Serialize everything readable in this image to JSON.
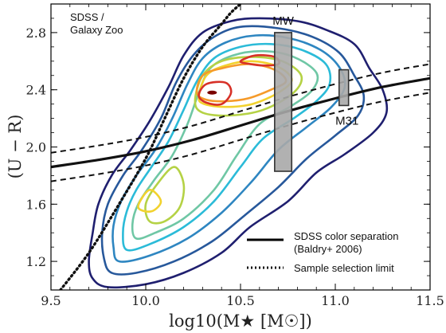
{
  "chart_data": {
    "type": "contour",
    "xlabel": "log10(M★ [M☉])",
    "ylabel": "(U − R)",
    "xlim": [
      9.5,
      11.5
    ],
    "ylim": [
      1.0,
      3.0
    ],
    "xticks": [
      "9.5",
      "10.0",
      "10.5",
      "11.0",
      "11.5"
    ],
    "yticks": [
      "1.2",
      "1.6",
      "2.0",
      "2.4",
      "2.8"
    ],
    "corner_note": [
      "SDSS /",
      "Galaxy Zoo"
    ],
    "legend": {
      "placement": "bottom-right",
      "entries": [
        {
          "style": "solid",
          "label_lines": [
            "SDSS color separation",
            "(Baldry+ 2006)"
          ]
        },
        {
          "style": "dotted",
          "label_lines": [
            "Sample selection limit"
          ]
        }
      ]
    },
    "color_separation": {
      "x": [
        9.5,
        9.75,
        10.0,
        10.25,
        10.5,
        10.75,
        11.0,
        11.25,
        11.5
      ],
      "center": [
        1.86,
        1.91,
        1.97,
        2.05,
        2.15,
        2.25,
        2.34,
        2.42,
        2.48
      ],
      "offset": 0.1
    },
    "selection_limit": {
      "x": [
        9.55,
        9.7,
        9.85,
        10.0,
        10.1,
        10.2,
        10.3,
        10.4,
        10.45,
        10.5
      ],
      "y": [
        1.0,
        1.26,
        1.58,
        1.92,
        2.2,
        2.48,
        2.7,
        2.86,
        2.94,
        3.0
      ]
    },
    "contours": [
      {
        "color": "#1f1f6f",
        "points": [
          [
            9.8,
            1.02
          ],
          [
            9.72,
            1.08
          ],
          [
            9.7,
            1.2
          ],
          [
            9.72,
            1.4
          ],
          [
            9.75,
            1.6
          ],
          [
            9.82,
            1.8
          ],
          [
            9.92,
            1.98
          ],
          [
            10.02,
            2.18
          ],
          [
            10.12,
            2.42
          ],
          [
            10.2,
            2.64
          ],
          [
            10.3,
            2.8
          ],
          [
            10.45,
            2.88
          ],
          [
            10.6,
            2.9
          ],
          [
            10.8,
            2.88
          ],
          [
            10.95,
            2.82
          ],
          [
            11.1,
            2.72
          ],
          [
            11.18,
            2.55
          ],
          [
            11.25,
            2.4
          ],
          [
            11.27,
            2.24
          ],
          [
            11.2,
            2.1
          ],
          [
            11.05,
            1.95
          ],
          [
            10.9,
            1.82
          ],
          [
            10.75,
            1.62
          ],
          [
            10.55,
            1.44
          ],
          [
            10.4,
            1.26
          ],
          [
            10.2,
            1.12
          ],
          [
            10.0,
            1.04
          ]
        ]
      },
      {
        "color": "#27589b",
        "points": [
          [
            9.82,
            1.12
          ],
          [
            9.78,
            1.22
          ],
          [
            9.77,
            1.4
          ],
          [
            9.8,
            1.6
          ],
          [
            9.88,
            1.8
          ],
          [
            9.98,
            1.98
          ],
          [
            10.08,
            2.2
          ],
          [
            10.16,
            2.45
          ],
          [
            10.25,
            2.64
          ],
          [
            10.36,
            2.77
          ],
          [
            10.5,
            2.84
          ],
          [
            10.7,
            2.83
          ],
          [
            10.88,
            2.77
          ],
          [
            11.02,
            2.66
          ],
          [
            11.1,
            2.5
          ],
          [
            11.15,
            2.36
          ],
          [
            11.12,
            2.22
          ],
          [
            11.0,
            2.08
          ],
          [
            10.85,
            1.92
          ],
          [
            10.7,
            1.72
          ],
          [
            10.52,
            1.52
          ],
          [
            10.35,
            1.34
          ],
          [
            10.15,
            1.2
          ],
          [
            9.95,
            1.12
          ]
        ]
      },
      {
        "color": "#2e86c1",
        "points": [
          [
            9.86,
            1.2
          ],
          [
            9.83,
            1.3
          ],
          [
            9.83,
            1.45
          ],
          [
            9.87,
            1.62
          ],
          [
            9.95,
            1.8
          ],
          [
            10.05,
            1.98
          ],
          [
            10.14,
            2.2
          ],
          [
            10.22,
            2.44
          ],
          [
            10.3,
            2.62
          ],
          [
            10.42,
            2.73
          ],
          [
            10.58,
            2.78
          ],
          [
            10.76,
            2.76
          ],
          [
            10.92,
            2.68
          ],
          [
            11.02,
            2.56
          ],
          [
            11.05,
            2.42
          ],
          [
            10.98,
            2.28
          ],
          [
            10.85,
            2.14
          ],
          [
            10.7,
            1.98
          ],
          [
            10.56,
            1.76
          ],
          [
            10.4,
            1.54
          ],
          [
            10.22,
            1.36
          ],
          [
            10.02,
            1.24
          ]
        ]
      },
      {
        "color": "#2bbbd8",
        "points": [
          [
            9.9,
            1.28
          ],
          [
            9.88,
            1.4
          ],
          [
            9.9,
            1.55
          ],
          [
            9.95,
            1.7
          ],
          [
            10.03,
            1.86
          ],
          [
            10.12,
            2.04
          ],
          [
            10.2,
            2.26
          ],
          [
            10.27,
            2.46
          ],
          [
            10.36,
            2.62
          ],
          [
            10.5,
            2.7
          ],
          [
            10.66,
            2.72
          ],
          [
            10.82,
            2.68
          ],
          [
            10.95,
            2.58
          ],
          [
            10.97,
            2.44
          ],
          [
            10.9,
            2.32
          ],
          [
            10.78,
            2.2
          ],
          [
            10.62,
            2.06
          ],
          [
            10.5,
            1.86
          ],
          [
            10.36,
            1.62
          ],
          [
            10.2,
            1.44
          ],
          [
            10.02,
            1.32
          ]
        ]
      },
      {
        "color": "#6fc7a5",
        "points": [
          [
            9.95,
            1.36
          ],
          [
            9.93,
            1.46
          ],
          [
            9.96,
            1.6
          ],
          [
            10.04,
            1.76
          ],
          [
            10.14,
            1.94
          ],
          [
            10.22,
            2.16
          ],
          [
            10.28,
            2.38
          ],
          [
            10.34,
            2.55
          ],
          [
            10.46,
            2.64
          ],
          [
            10.62,
            2.67
          ],
          [
            10.78,
            2.63
          ],
          [
            10.9,
            2.52
          ],
          [
            10.88,
            2.4
          ],
          [
            10.76,
            2.28
          ],
          [
            10.6,
            2.16
          ],
          [
            10.48,
            1.94
          ],
          [
            10.36,
            1.7
          ],
          [
            10.2,
            1.5
          ],
          [
            10.05,
            1.4
          ]
        ]
      },
      {
        "color": "#b5d245",
        "points": [
          [
            10.02,
            1.48
          ],
          [
            10.0,
            1.6
          ],
          [
            10.06,
            1.74
          ],
          [
            10.15,
            1.86
          ],
          [
            10.2,
            1.74
          ],
          [
            10.18,
            1.58
          ],
          [
            10.1,
            1.48
          ]
        ]
      },
      {
        "color": "#b5d245",
        "points": [
          [
            10.26,
            2.32
          ],
          [
            10.3,
            2.5
          ],
          [
            10.4,
            2.6
          ],
          [
            10.56,
            2.63
          ],
          [
            10.72,
            2.6
          ],
          [
            10.82,
            2.5
          ],
          [
            10.78,
            2.38
          ],
          [
            10.62,
            2.26
          ],
          [
            10.44,
            2.22
          ],
          [
            10.3,
            2.24
          ]
        ]
      },
      {
        "color": "#f2d22e",
        "points": [
          [
            10.28,
            2.35
          ],
          [
            10.32,
            2.5
          ],
          [
            10.42,
            2.57
          ],
          [
            10.56,
            2.6
          ],
          [
            10.7,
            2.56
          ],
          [
            10.77,
            2.47
          ],
          [
            10.7,
            2.38
          ],
          [
            10.56,
            2.3
          ],
          [
            10.42,
            2.28
          ],
          [
            10.31,
            2.3
          ]
        ]
      },
      {
        "color": "#f2d22e",
        "points": [
          [
            9.96,
            1.58
          ],
          [
            10.02,
            1.7
          ],
          [
            10.08,
            1.62
          ],
          [
            10.03,
            1.55
          ]
        ]
      },
      {
        "color": "#f59a2a",
        "points": [
          [
            10.27,
            2.38
          ],
          [
            10.3,
            2.5
          ],
          [
            10.4,
            2.55
          ],
          [
            10.55,
            2.58
          ],
          [
            10.68,
            2.54
          ],
          [
            10.74,
            2.46
          ],
          [
            10.66,
            2.4
          ],
          [
            10.54,
            2.34
          ],
          [
            10.42,
            2.32
          ],
          [
            10.32,
            2.33
          ]
        ]
      },
      {
        "color": "#d73027",
        "points": [
          [
            10.28,
            2.36
          ],
          [
            10.32,
            2.44
          ],
          [
            10.42,
            2.45
          ],
          [
            10.45,
            2.38
          ],
          [
            10.4,
            2.3
          ],
          [
            10.32,
            2.31
          ]
        ]
      },
      {
        "color": "#d73027",
        "points": [
          [
            10.5,
            2.6
          ],
          [
            10.58,
            2.64
          ],
          [
            10.68,
            2.63
          ],
          [
            10.7,
            2.58
          ],
          [
            10.62,
            2.57
          ],
          [
            10.55,
            2.58
          ]
        ]
      }
    ],
    "center_point": {
      "x": 10.35,
      "y": 2.38,
      "color": "#7a0000"
    },
    "galaxies": [
      {
        "label": "MW",
        "x0": 10.68,
        "x1": 10.77,
        "y0": 1.83,
        "y1": 2.8
      },
      {
        "label": "M31",
        "x0": 11.02,
        "x1": 11.07,
        "y0": 2.29,
        "y1": 2.54
      }
    ]
  }
}
